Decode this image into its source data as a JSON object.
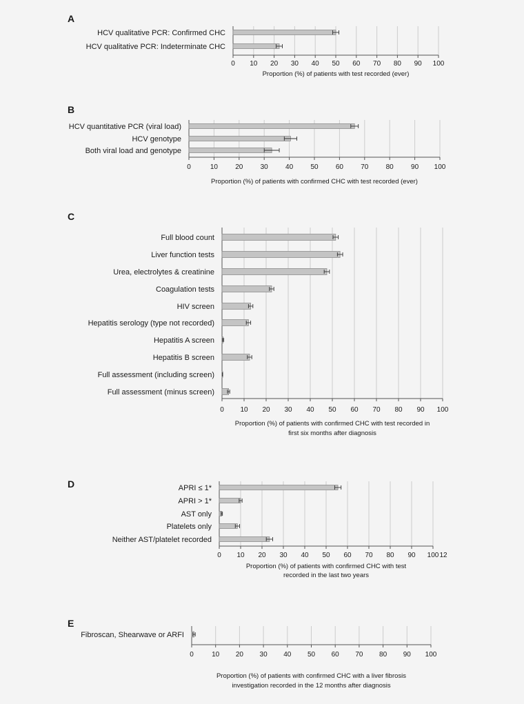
{
  "chart_data": [
    {
      "panel": "A",
      "type": "bar",
      "orientation": "horizontal",
      "categories": [
        "HCV qualitative PCR: Confirmed CHC",
        "HCV qualitative PCR: Indeterminate CHC"
      ],
      "values": [
        50,
        22.5
      ],
      "errors": [
        1.5,
        1.5
      ],
      "xlim": [
        0,
        100
      ],
      "ticks": [
        "0",
        "10",
        "20",
        "30",
        "40",
        "50",
        "60",
        "70",
        "80",
        "90",
        "100"
      ],
      "xlabel": [
        "Proportion (%) of patients with test recorded (ever)"
      ],
      "grid": true
    },
    {
      "panel": "B",
      "type": "bar",
      "orientation": "horizontal",
      "categories": [
        "HCV quantitative PCR (viral load)",
        "HCV genotype",
        "Both viral load and genotype"
      ],
      "values": [
        66,
        40.5,
        33
      ],
      "errors": [
        1.5,
        2.5,
        3
      ],
      "xlim": [
        0,
        100
      ],
      "ticks": [
        "0",
        "10",
        "20",
        "30",
        "40",
        "50",
        "60",
        "70",
        "80",
        "90",
        "100"
      ],
      "xlabel": [
        "Proportion (%) of patients with confirmed CHC with test recorded (ever)"
      ],
      "grid": true
    },
    {
      "panel": "C",
      "type": "bar",
      "orientation": "horizontal",
      "categories": [
        "Full blood count",
        "Liver function tests",
        "Urea, electrolytes & creatinine",
        "Coagulation tests",
        "HIV screen",
        "Hepatitis serology (type not recorded)",
        "Hepatitis A screen",
        "Hepatitis B screen",
        "Full assessment (including screen)",
        "Full assessment (minus screen)"
      ],
      "values": [
        51.5,
        53.5,
        47.5,
        22.5,
        13,
        12,
        0.5,
        12.5,
        0.2,
        3
      ],
      "errors": [
        1.2,
        1.2,
        1.2,
        1,
        1,
        1,
        0.3,
        1,
        0.1,
        0.5
      ],
      "xlim": [
        0,
        100
      ],
      "ticks": [
        "0",
        "10",
        "20",
        "30",
        "40",
        "50",
        "60",
        "70",
        "80",
        "90",
        "100"
      ],
      "xlabel": [
        "Proportion (%) of patients with confirmed CHC with test recorded in",
        "first six months after diagnosis"
      ],
      "grid": true
    },
    {
      "panel": "D",
      "type": "bar",
      "orientation": "horizontal",
      "categories": [
        "APRI ≤ 1*",
        "APRI > 1*",
        "AST only",
        "Platelets only",
        "Neither AST/platelet recorded"
      ],
      "values": [
        55.5,
        10,
        1.2,
        8.5,
        23.5
      ],
      "errors": [
        1.5,
        0.7,
        0.3,
        1,
        1.5
      ],
      "xlim": [
        0,
        100
      ],
      "ticks": [
        "0",
        "10",
        "20",
        "30",
        "40",
        "50",
        "60",
        "70",
        "80",
        "90",
        "100"
      ],
      "xlabel": [
        "Proportion (%) of patients with confirmed CHC with test",
        "recorded in the last two years"
      ],
      "annotation": "12",
      "grid": true
    },
    {
      "panel": "E",
      "type": "bar",
      "orientation": "horizontal",
      "categories": [
        "Fibroscan, Shearwave or ARFI"
      ],
      "values": [
        1
      ],
      "errors": [
        0.5
      ],
      "xlim": [
        0,
        100
      ],
      "ticks": [
        "0",
        "10",
        "20",
        "30",
        "40",
        "50",
        "60",
        "70",
        "80",
        "90",
        "100"
      ],
      "xlabel": [
        "Proportion (%) of patients with confirmed CHC with a liver fibrosis",
        "investigation recorded in the 12 months after diagnosis"
      ],
      "grid": true
    }
  ],
  "colors": {
    "background": "#f4f4f4",
    "bar_fill": "#c4c4c4",
    "bar_stroke": "#8c8c8c",
    "axis": "#555555",
    "grid": "#cccccc",
    "text": "#1a1a1a"
  }
}
